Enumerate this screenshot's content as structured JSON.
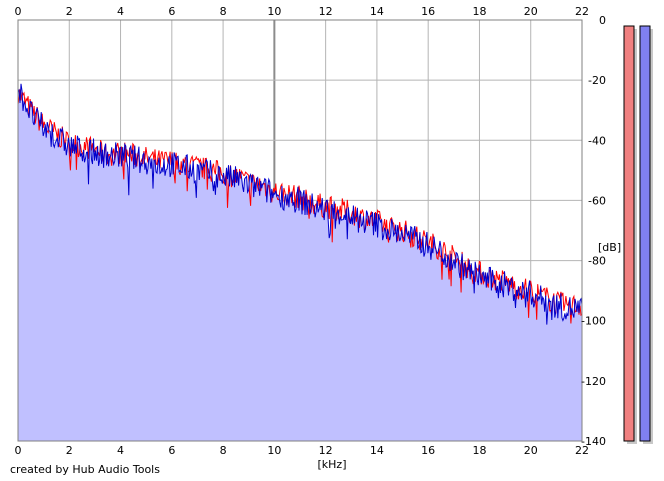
{
  "footer_text": "created by Hub Audio Tools",
  "chart_data": {
    "type": "area",
    "xlabel": "[kHz]",
    "ylabel": "[dB]",
    "xlim": [
      0,
      22
    ],
    "ylim": [
      -140,
      0
    ],
    "x_ticks": [
      0,
      2,
      4,
      6,
      8,
      10,
      12,
      14,
      16,
      18,
      20,
      22
    ],
    "y_ticks": [
      0,
      -20,
      -40,
      -60,
      -80,
      -100,
      -120,
      -140
    ],
    "y_tick_labels": [
      "0",
      "-20",
      "-40",
      "-60",
      "-80",
      "-100",
      "-120",
      "-140"
    ],
    "grid": true,
    "colors": {
      "fill": "#c0c0ff",
      "red_series": "#ff0000",
      "blue_series": "#0000cc",
      "grid": "#b4b4b4",
      "grid_major": "#8c8c8c",
      "meter_red": "#f08080",
      "meter_blue": "#8080f0",
      "meter_shadow": "#c8c8c8"
    },
    "series": [
      {
        "color": "red",
        "x": [
          0,
          0.5,
          1,
          1.5,
          2,
          2.5,
          3,
          3.5,
          4,
          4.5,
          5,
          5.5,
          6,
          6.5,
          7,
          7.5,
          8,
          8.5,
          9,
          9.5,
          10,
          10.5,
          11,
          11.5,
          12,
          12.5,
          13,
          13.5,
          14,
          14.5,
          15,
          15.5,
          16,
          16.5,
          17,
          17.5,
          18,
          18.5,
          19,
          19.5,
          20,
          20.5,
          21,
          21.5,
          22
        ],
        "values": [
          -24,
          -30,
          -35,
          -38,
          -41,
          -42,
          -43,
          -45,
          -44,
          -45,
          -46,
          -47,
          -47,
          -48,
          -49,
          -50,
          -51,
          -52,
          -54,
          -55,
          -57,
          -58,
          -59,
          -61,
          -62,
          -63,
          -64,
          -66,
          -67,
          -69,
          -70,
          -72,
          -74,
          -76,
          -79,
          -82,
          -84,
          -86,
          -87,
          -89,
          -90,
          -92,
          -94,
          -95,
          -95
        ]
      },
      {
        "color": "blue",
        "x": [
          0,
          0.5,
          1,
          1.5,
          2,
          2.5,
          3,
          3.5,
          4,
          4.5,
          5,
          5.5,
          6,
          6.5,
          7,
          7.5,
          8,
          8.5,
          9,
          9.5,
          10,
          10.5,
          11,
          11.5,
          12,
          12.5,
          13,
          13.5,
          14,
          14.5,
          15,
          15.5,
          16,
          16.5,
          17,
          17.5,
          18,
          18.5,
          19,
          19.5,
          20,
          20.5,
          21,
          21.5,
          22
        ],
        "values": [
          -23,
          -31,
          -36,
          -39,
          -42,
          -43,
          -44,
          -45,
          -45,
          -46,
          -47,
          -48,
          -48,
          -49,
          -50,
          -51,
          -52,
          -53,
          -55,
          -56,
          -58,
          -59,
          -60,
          -62,
          -63,
          -64,
          -65,
          -67,
          -68,
          -70,
          -71,
          -73,
          -75,
          -77,
          -80,
          -83,
          -85,
          -87,
          -88,
          -90,
          -91,
          -93,
          -95,
          -96,
          -96
        ]
      }
    ],
    "level_meters": [
      {
        "channel": "left",
        "color": "red",
        "level_db": 0
      },
      {
        "channel": "right",
        "color": "blue",
        "level_db": 0
      }
    ]
  }
}
